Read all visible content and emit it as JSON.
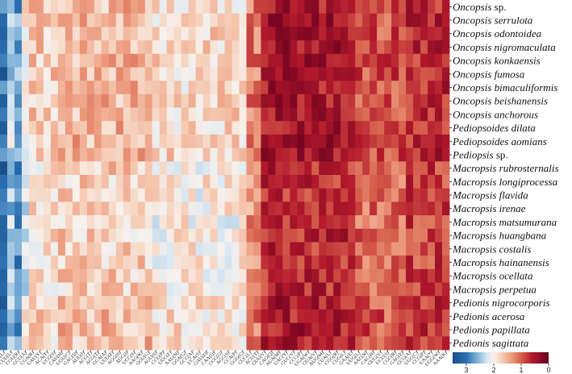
{
  "chart_data": {
    "type": "heatmap",
    "title": "",
    "rows": [
      {
        "genus": "Oncopsis",
        "epithet": "sp."
      },
      {
        "genus": "Oncopsis",
        "epithet": "serrulota"
      },
      {
        "genus": "Oncopsis",
        "epithet": "odontoidea"
      },
      {
        "genus": "Oncopsis",
        "epithet": "nigromaculata"
      },
      {
        "genus": "Oncopsis",
        "epithet": "konkaensis"
      },
      {
        "genus": "Oncopsis",
        "epithet": "fumosa"
      },
      {
        "genus": "Oncopsis",
        "epithet": "bimaculiformis"
      },
      {
        "genus": "Oncopsis",
        "epithet": "beishanensis"
      },
      {
        "genus": "Oncopsis",
        "epithet": "anchorous"
      },
      {
        "genus": "Pediopsoides",
        "epithet": "dilata"
      },
      {
        "genus": "Pediopsoides",
        "epithet": "aomians"
      },
      {
        "genus": "Pediopsis",
        "epithet": "sp."
      },
      {
        "genus": "Macropsis",
        "epithet": "rubrosternalis"
      },
      {
        "genus": "Macropsis",
        "epithet": "longiprocessa"
      },
      {
        "genus": "Macropsis",
        "epithet": "flavida"
      },
      {
        "genus": "Macropsis",
        "epithet": "irenae"
      },
      {
        "genus": "Macropsis",
        "epithet": "matsumurana"
      },
      {
        "genus": "Macropsis",
        "epithet": "huangbana"
      },
      {
        "genus": "Macropsis",
        "epithet": "costalis"
      },
      {
        "genus": "Macropsis",
        "epithet": "hainanensis"
      },
      {
        "genus": "Macropsis",
        "epithet": "ocellata"
      },
      {
        "genus": "Macropsis",
        "epithet": "perpetua"
      },
      {
        "genus": "Pedionis",
        "epithet": "nigrocorporis"
      },
      {
        "genus": "Pedionis",
        "epithet": "acerosa"
      },
      {
        "genus": "Pedionis",
        "epithet": "papillata"
      },
      {
        "genus": "Pedionis",
        "epithet": "sagittata"
      }
    ],
    "columns": [
      "UUA(L)",
      "CUU(L)",
      "CGU(R)",
      "GCU(A)",
      "CGA(R)",
      "UAU(Y)",
      "ACA(T)",
      "UCG(S)",
      "CAU(H)",
      "UGU(C)",
      "GAC(D)",
      "AUU(I)",
      "ACC(T)",
      "ACG(T)",
      "GCA(A)",
      "UUU(F)",
      "AGG(S)",
      "AUC(I)",
      "UCC(S)",
      "AAG(K)",
      "GGU(G)",
      "AGU(S)",
      "CCU(P)",
      "UUC(F)",
      "AAU(N)",
      "GGA(G)",
      "GCC(A)",
      "UCA(S)",
      "GAU(D)",
      "CAA(Q)",
      "GGC(G)",
      "AGC(S)",
      "CCA(P)",
      "GGG(G)",
      "CUC(L)",
      "ACU(T)",
      "GUU(V)",
      "CAG(Q)",
      "AUA(M)",
      "UAC(Y)",
      "GUC(V)",
      "CCC(P)",
      "UGA(W)",
      "GUA(V)",
      "AUG(M)",
      "CUA(L)",
      "CGG(R)",
      "CUG(L)",
      "GAA(E)",
      "UUG(L)",
      "AAC(N)",
      "CAC(H)",
      "GUG(V)",
      "UCU(S)",
      "CGC(R)",
      "GAG(E)",
      "GCG(A)",
      "UGC(C)",
      "CCG(P)",
      "UAA(*)",
      "UGG(W)",
      "AAA(K)"
    ],
    "value_range": [
      0,
      3.5
    ],
    "colorbar": {
      "ticks": [
        3,
        2,
        1,
        0
      ],
      "colors": [
        "#2166ac",
        "#f7f7f7",
        "#b2182b",
        "#67001f"
      ]
    }
  }
}
